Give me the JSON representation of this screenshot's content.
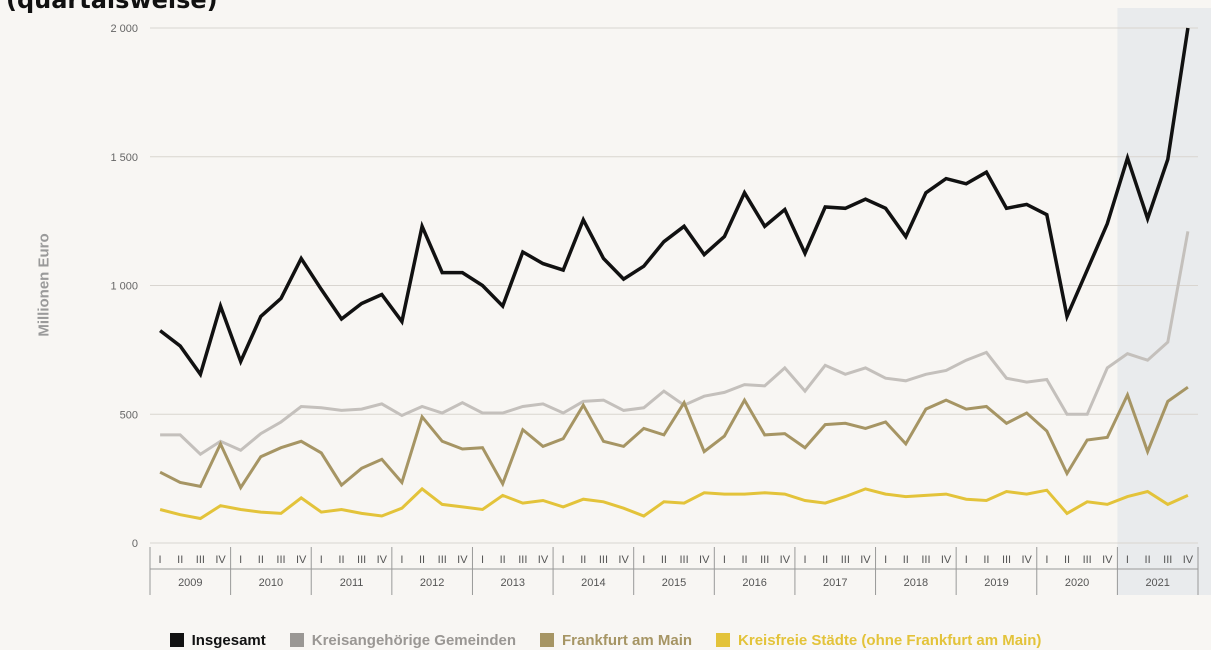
{
  "colors": {
    "background": "#f8f6f3",
    "grid": "#d9d5d0",
    "axis": "#999999",
    "highlight": "#dfe5ea"
  },
  "title_fragment": "(quartalsweise)",
  "chart_data": {
    "type": "line",
    "ylabel": "Millionen Euro",
    "xlabel": "",
    "ylim": [
      0,
      2000
    ],
    "yticks": [
      0,
      500,
      1000,
      1500,
      2000
    ],
    "ytick_labels": [
      "0",
      "500",
      "1 000",
      "1 500",
      "2 000"
    ],
    "quarter_labels": [
      "I",
      "II",
      "III",
      "IV"
    ],
    "years": [
      "2009",
      "2010",
      "2011",
      "2012",
      "2013",
      "2014",
      "2015",
      "2016",
      "2017",
      "2018",
      "2019",
      "2020",
      "2021"
    ],
    "highlighted_year": "2021",
    "grid": "horizontal",
    "legend_position": "bottom",
    "series": [
      {
        "name": "Insgesamt",
        "color": "#111111",
        "values": [
          825,
          765,
          655,
          920,
          705,
          880,
          950,
          1105,
          985,
          870,
          930,
          965,
          860,
          1230,
          1050,
          1050,
          1000,
          920,
          1130,
          1085,
          1060,
          1255,
          1105,
          1025,
          1075,
          1170,
          1230,
          1120,
          1190,
          1360,
          1230,
          1295,
          1125,
          1305,
          1300,
          1335,
          1300,
          1190,
          1360,
          1415,
          1395,
          1440,
          1300,
          1315,
          1275,
          880,
          1060,
          1240,
          1495,
          1260,
          1490,
          2000
        ]
      },
      {
        "name": "Kreisangehörige Gemeinden",
        "color": "#c4c0bc",
        "values": [
          420,
          420,
          345,
          395,
          360,
          425,
          470,
          530,
          525,
          515,
          520,
          540,
          495,
          530,
          505,
          545,
          505,
          505,
          530,
          540,
          505,
          550,
          555,
          515,
          525,
          590,
          535,
          570,
          585,
          615,
          610,
          680,
          590,
          690,
          655,
          680,
          640,
          630,
          655,
          670,
          710,
          740,
          640,
          625,
          635,
          500,
          500,
          680,
          735,
          710,
          780,
          1210
        ]
      },
      {
        "name": "Frankfurt am Main",
        "color": "#a69564",
        "values": [
          275,
          235,
          220,
          385,
          215,
          335,
          370,
          395,
          350,
          225,
          290,
          325,
          235,
          490,
          395,
          365,
          370,
          230,
          440,
          375,
          405,
          535,
          395,
          375,
          445,
          420,
          545,
          355,
          415,
          555,
          420,
          425,
          370,
          460,
          465,
          445,
          470,
          385,
          520,
          555,
          520,
          530,
          465,
          505,
          435,
          270,
          400,
          410,
          575,
          355,
          550,
          605
        ]
      },
      {
        "name": "Kreisfreie Städte (ohne Frankfurt am Main)",
        "color": "#e3c33a",
        "values": [
          130,
          110,
          95,
          145,
          130,
          120,
          115,
          175,
          120,
          130,
          115,
          105,
          135,
          210,
          150,
          140,
          130,
          185,
          155,
          165,
          140,
          170,
          160,
          135,
          105,
          160,
          155,
          195,
          190,
          190,
          195,
          190,
          165,
          155,
          180,
          210,
          190,
          180,
          185,
          190,
          170,
          165,
          200,
          190,
          205,
          115,
          160,
          150,
          180,
          200,
          150,
          185
        ]
      }
    ]
  }
}
